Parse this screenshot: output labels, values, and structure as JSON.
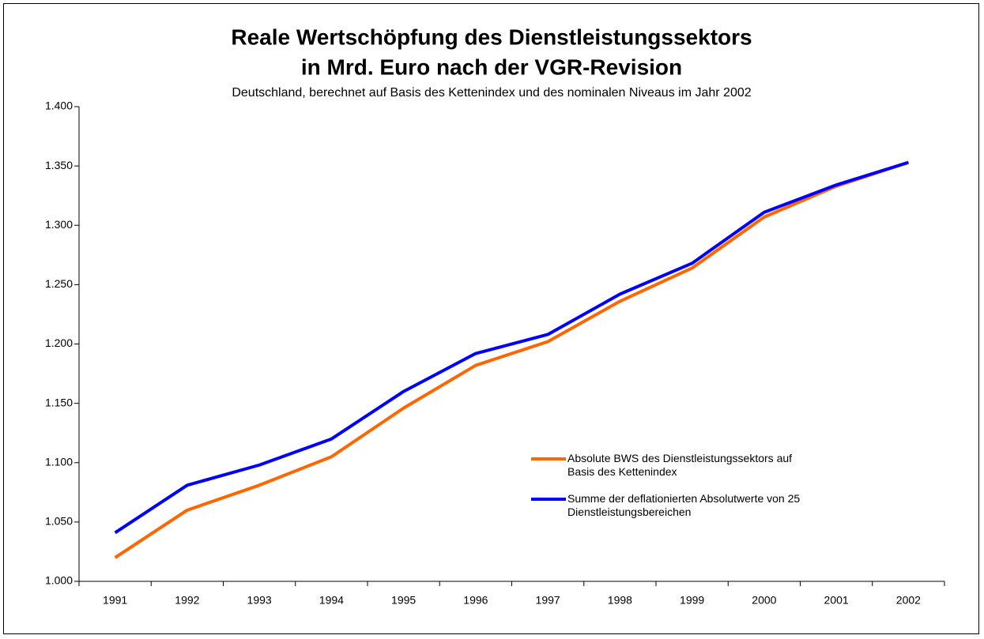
{
  "chart_data": {
    "type": "line",
    "title": [
      "Reale Wertschöpfung des Dienstleistungssektors",
      "in Mrd. Euro nach der VGR-Revision"
    ],
    "subtitle": "Deutschland, berechnet auf Basis des Kettenindex und des nominalen Niveaus im Jahr 2002",
    "categories": [
      "1991",
      "1992",
      "1993",
      "1994",
      "1995",
      "1996",
      "1997",
      "1998",
      "1999",
      "2000",
      "2001",
      "2002"
    ],
    "series": [
      {
        "name": "Absolute BWS des Dienstleistungssektors auf Basis des Kettenindex",
        "color": "#ff6600",
        "values": [
          1020,
          1060,
          1081,
          1105,
          1146,
          1182,
          1202,
          1236,
          1264,
          1307,
          1333,
          1353
        ]
      },
      {
        "name": "Summe der deflationierten Absolutwerte von 25 Dienstleistungsbereichen",
        "color": "#0000ff",
        "values": [
          1041,
          1081,
          1098,
          1120,
          1160,
          1192,
          1208,
          1242,
          1268,
          1311,
          1334,
          1353
        ]
      }
    ],
    "ylim": [
      1000,
      1400
    ],
    "yticks": [
      {
        "value": 1000,
        "label": "1.000"
      },
      {
        "value": 1050,
        "label": "1.050"
      },
      {
        "value": 1100,
        "label": "1.100"
      },
      {
        "value": 1150,
        "label": "1.150"
      },
      {
        "value": 1200,
        "label": "1.200"
      },
      {
        "value": 1250,
        "label": "1.250"
      },
      {
        "value": 1300,
        "label": "1.300"
      },
      {
        "value": 1350,
        "label": "1.350"
      },
      {
        "value": 1400,
        "label": "1.400"
      }
    ],
    "grid": false
  }
}
